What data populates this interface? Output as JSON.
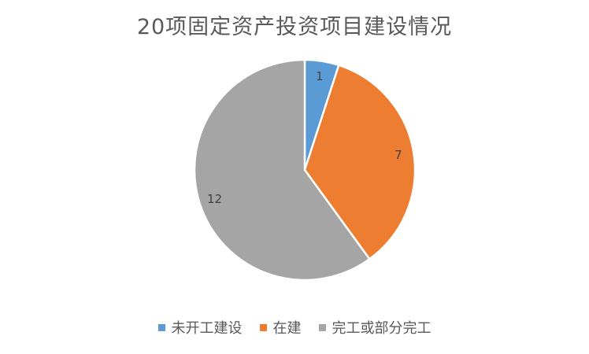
{
  "chart_data": {
    "type": "pie",
    "title": "20项固定资产投资项目建设情况",
    "categories": [
      "未开工建设",
      "在建",
      "完工或部分完工"
    ],
    "values": [
      1,
      7,
      12
    ],
    "data_labels": [
      "1",
      "7",
      "12"
    ],
    "colors": [
      "#5b9bd5",
      "#ed7d31",
      "#a5a5a5"
    ],
    "legend_position": "bottom",
    "start_angle": "top",
    "direction": "clockwise"
  }
}
